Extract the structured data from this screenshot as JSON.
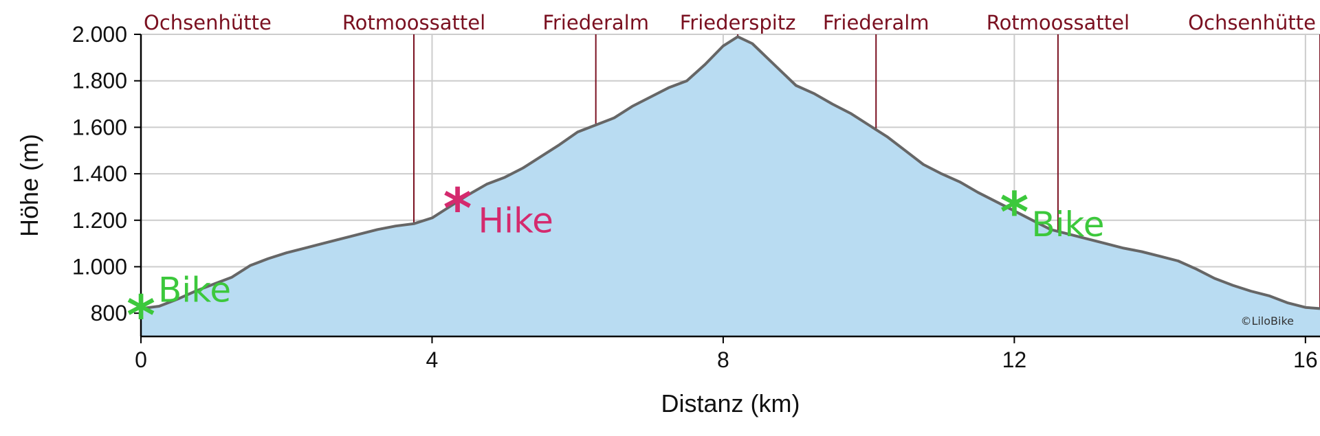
{
  "chart_data": {
    "type": "area",
    "xlabel": "Distanz (km)",
    "ylabel": "Höhe (m)",
    "xlim": [
      0,
      16.2
    ],
    "ylim": [
      700,
      2000
    ],
    "x_ticks": [
      0,
      4,
      8,
      12,
      16
    ],
    "x_tick_labels": [
      "0",
      "4",
      "8",
      "12",
      "16"
    ],
    "y_ticks": [
      800,
      1000,
      1200,
      1400,
      1600,
      1800,
      2000
    ],
    "y_tick_labels": [
      "800",
      "1.000",
      "1.200",
      "1.400",
      "1.600",
      "1.800",
      "2.000"
    ],
    "grid": true,
    "colors": {
      "fill": "#b9dcf2",
      "line": "#666666",
      "waypoint": "#7a1020",
      "bike": "#3cc83c",
      "hike": "#d42a6e"
    },
    "profile": {
      "x": [
        0,
        0.25,
        0.5,
        0.75,
        1.0,
        1.25,
        1.5,
        1.75,
        2.0,
        2.25,
        2.5,
        2.75,
        3.0,
        3.25,
        3.5,
        3.75,
        4.0,
        4.25,
        4.5,
        4.75,
        5.0,
        5.25,
        5.5,
        5.75,
        6.0,
        6.25,
        6.5,
        6.75,
        7.0,
        7.25,
        7.5,
        7.75,
        8.0,
        8.2,
        8.4,
        8.6,
        8.8,
        9.0,
        9.25,
        9.5,
        9.75,
        10.0,
        10.25,
        10.5,
        10.75,
        11.0,
        11.25,
        11.5,
        11.75,
        12.0,
        12.25,
        12.5,
        12.75,
        13.0,
        13.25,
        13.5,
        13.75,
        14.0,
        14.25,
        14.5,
        14.75,
        15.0,
        15.25,
        15.5,
        15.75,
        16.0,
        16.2
      ],
      "y": [
        820,
        830,
        860,
        895,
        925,
        955,
        1005,
        1035,
        1060,
        1080,
        1100,
        1120,
        1140,
        1160,
        1175,
        1185,
        1210,
        1260,
        1310,
        1355,
        1385,
        1425,
        1475,
        1525,
        1580,
        1610,
        1640,
        1690,
        1730,
        1770,
        1800,
        1870,
        1950,
        1990,
        1960,
        1900,
        1840,
        1780,
        1745,
        1700,
        1660,
        1610,
        1560,
        1500,
        1440,
        1400,
        1365,
        1320,
        1280,
        1240,
        1200,
        1160,
        1140,
        1120,
        1100,
        1080,
        1065,
        1045,
        1025,
        990,
        950,
        920,
        895,
        875,
        845,
        825,
        820
      ]
    },
    "waypoints": [
      {
        "name": "Ochsenhütte",
        "x": 0
      },
      {
        "name": "Rotmoossattel",
        "x": 3.75
      },
      {
        "name": "Friederalm",
        "x": 6.25
      },
      {
        "name": "Friederspitz",
        "x": 8.2
      },
      {
        "name": "Friederalm",
        "x": 10.1
      },
      {
        "name": "Rotmoossattel",
        "x": 12.6
      },
      {
        "name": "Ochsenhütte",
        "x": 16.2
      }
    ],
    "markers": [
      {
        "symbol": "*",
        "label": "Bike",
        "x": 0,
        "y": 820,
        "type": "bike"
      },
      {
        "symbol": "*",
        "label": "Hike",
        "x": 4.35,
        "y": 1280,
        "type": "hike"
      },
      {
        "symbol": "*",
        "label": "Bike",
        "x": 12.0,
        "y": 1265,
        "type": "bike"
      }
    ]
  },
  "copyright": "©LiloBike"
}
